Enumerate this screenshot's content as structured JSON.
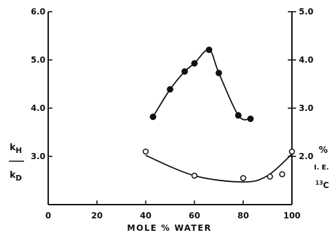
{
  "chart_data": {
    "type": "scatter",
    "xlabel": "MOLE % WATER",
    "xlim": [
      0,
      100
    ],
    "xticks": [
      "0",
      "20",
      "40",
      "60",
      "80",
      "100"
    ],
    "left_axis": {
      "label_num": "k",
      "label_num_sub": "H",
      "label_den": "k",
      "label_den_sub": "D",
      "ylim": [
        2.0,
        6.0
      ],
      "ticks": [
        "3.0",
        "4.0",
        "5.0",
        "6.0"
      ]
    },
    "right_axis": {
      "label_top": "%",
      "label_mid": "I. E.",
      "label_bot_sup": "13",
      "label_bot": "C",
      "ylim": [
        1.0,
        5.0
      ],
      "ticks": [
        "2.0",
        "3.0",
        "4.0",
        "5.0"
      ]
    },
    "series": [
      {
        "marker": "filled-circle",
        "axis": "left",
        "x": [
          43,
          50,
          56,
          60,
          66,
          70,
          78,
          83
        ],
        "y": [
          3.82,
          4.39,
          4.76,
          4.93,
          5.21,
          4.73,
          3.85,
          3.78
        ]
      },
      {
        "marker": "open-circle",
        "axis": "left",
        "x": [
          40,
          60,
          80,
          91,
          96,
          100
        ],
        "y": [
          3.1,
          2.6,
          2.55,
          2.58,
          2.63,
          3.1
        ]
      }
    ]
  }
}
